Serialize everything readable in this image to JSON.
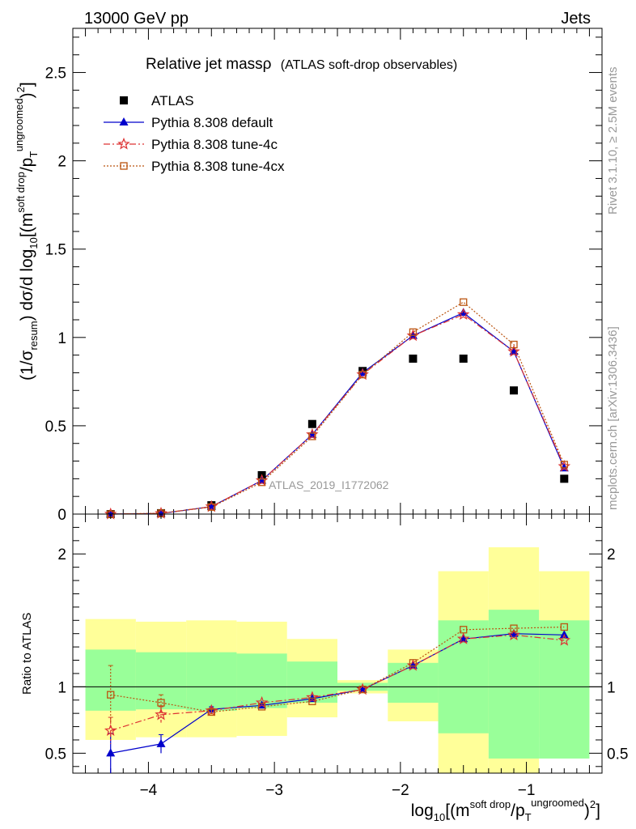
{
  "header": {
    "left": "13000 GeV pp",
    "right": "Jets"
  },
  "side_labels": {
    "rivet": "Rivet 3.1.10, ≥ 2.5M events",
    "mcplots": "mcplots.cern.ch [arXiv:1306.3436]"
  },
  "plot_title": {
    "main": "Relative jet massρ",
    "sub": "(ATLAS soft-drop observables)"
  },
  "watermark": "ATLAS_2019_I1772062",
  "ylabel_top": {
    "a": "(1/σ",
    "a_sub": "resum",
    "b": ") dσ/d log",
    "b_sub": "10",
    "c": "[(m",
    "c_sup": "soft drop",
    "d": "/p",
    "d_sub": "T",
    "d_sup": "ungroomed",
    "e": ")",
    "e_sup": "2",
    "f": "]"
  },
  "ylabel_bottom": "Ratio to ATLAS",
  "xlabel": {
    "a": "log",
    "a_sub": "10",
    "b": "[(m",
    "b_sup": "soft drop",
    "c": "/p",
    "c_sub": "T",
    "c_sup": "ungroomed",
    "d": ")",
    "d_sup": "2",
    "e": "]"
  },
  "legend": [
    {
      "label": "ATLAS",
      "color": "#000000",
      "marker": "square",
      "line": "none"
    },
    {
      "label": "Pythia 8.308 default",
      "color": "#0000cc",
      "marker": "triangle",
      "line": "solid"
    },
    {
      "label": "Pythia 8.308 tune-4c",
      "color": "#dd3333",
      "marker": "star",
      "line": "dashdot"
    },
    {
      "label": "Pythia 8.308 tune-4cx",
      "color": "#bb5511",
      "marker": "open-square",
      "line": "dotted"
    }
  ],
  "colors": {
    "band_outer": "#ffff99",
    "band_inner": "#99ff99"
  },
  "chart_data": [
    {
      "type": "scatter",
      "name": "main",
      "xlim": [
        -4.6,
        -0.4
      ],
      "ylim": [
        0,
        2.75
      ],
      "xticks": [
        -4,
        -3,
        -2,
        -1
      ],
      "yticks": [
        0,
        0.5,
        1,
        1.5,
        2,
        2.5
      ],
      "ytick_labels": [
        "0",
        "0.5",
        "1",
        "1.5",
        "2",
        "2.5"
      ],
      "x": [
        -4.3,
        -3.9,
        -3.5,
        -3.1,
        -2.7,
        -2.3,
        -1.9,
        -1.5,
        -1.1,
        -0.7
      ],
      "series": [
        {
          "key": "atlas",
          "values": [
            0.0,
            0.005,
            0.05,
            0.22,
            0.51,
            0.81,
            0.88,
            0.88,
            0.7,
            0.2
          ]
        },
        {
          "key": "default",
          "values": [
            0.0,
            0.003,
            0.042,
            0.19,
            0.45,
            0.8,
            1.01,
            1.14,
            0.92,
            0.26
          ]
        },
        {
          "key": "tune4c",
          "values": [
            0.0,
            0.004,
            0.042,
            0.19,
            0.45,
            0.79,
            1.01,
            1.13,
            0.92,
            0.27
          ]
        },
        {
          "key": "tune4cx",
          "values": [
            0.0,
            0.005,
            0.04,
            0.18,
            0.44,
            0.79,
            1.03,
            1.2,
            0.96,
            0.28
          ]
        }
      ]
    },
    {
      "type": "scatter",
      "name": "ratio",
      "xlim": [
        -4.6,
        -0.4
      ],
      "ylim": [
        0.35,
        2.3
      ],
      "xticks": [
        -4,
        -3,
        -2,
        -1
      ],
      "xtick_labels": [
        "−4",
        "−3",
        "−2",
        "−1"
      ],
      "yticks": [
        0.5,
        1,
        2
      ],
      "ytick_labels": [
        "0.5",
        "1",
        "2"
      ],
      "x": [
        -4.3,
        -3.9,
        -3.5,
        -3.1,
        -2.7,
        -2.3,
        -1.9,
        -1.5,
        -1.1,
        -0.7
      ],
      "bin_edges": [
        -4.5,
        -4.1,
        -3.7,
        -3.3,
        -2.9,
        -2.5,
        -2.1,
        -1.7,
        -1.3,
        -0.9,
        -0.5
      ],
      "band_outer": [
        [
          0.6,
          1.51
        ],
        [
          0.62,
          1.49
        ],
        [
          0.62,
          1.5
        ],
        [
          0.63,
          1.49
        ],
        [
          0.77,
          1.36
        ],
        [
          0.95,
          1.05
        ],
        [
          0.74,
          1.28
        ],
        [
          0.35,
          1.87
        ],
        [
          0.35,
          2.05
        ],
        [
          0.62,
          1.87
        ]
      ],
      "band_inner": [
        [
          0.82,
          1.28
        ],
        [
          0.83,
          1.26
        ],
        [
          0.82,
          1.26
        ],
        [
          0.84,
          1.25
        ],
        [
          0.88,
          1.19
        ],
        [
          0.97,
          1.03
        ],
        [
          0.88,
          1.18
        ],
        [
          0.65,
          1.5
        ],
        [
          0.46,
          1.58
        ],
        [
          0.46,
          1.5
        ]
      ],
      "series": [
        {
          "key": "default",
          "values": [
            0.5,
            0.57,
            0.83,
            0.86,
            0.91,
            0.98,
            1.16,
            1.36,
            1.4,
            1.39
          ],
          "err": [
            0.15,
            0.07,
            0.02,
            0.01,
            0.01,
            0.01,
            0.01,
            0.01,
            0.01,
            0.01
          ]
        },
        {
          "key": "tune4c",
          "values": [
            0.67,
            0.79,
            0.82,
            0.88,
            0.92,
            0.98,
            1.16,
            1.36,
            1.39,
            1.35
          ],
          "err": [
            0.1,
            0.06,
            0.02,
            0.01,
            0.01,
            0.01,
            0.01,
            0.01,
            0.01,
            0.01
          ]
        },
        {
          "key": "tune4cx",
          "values": [
            0.94,
            0.88,
            0.81,
            0.85,
            0.89,
            0.98,
            1.18,
            1.43,
            1.44,
            1.45
          ],
          "err": [
            0.22,
            0.06,
            0.02,
            0.01,
            0.01,
            0.01,
            0.01,
            0.01,
            0.01,
            0.01
          ]
        }
      ]
    }
  ]
}
